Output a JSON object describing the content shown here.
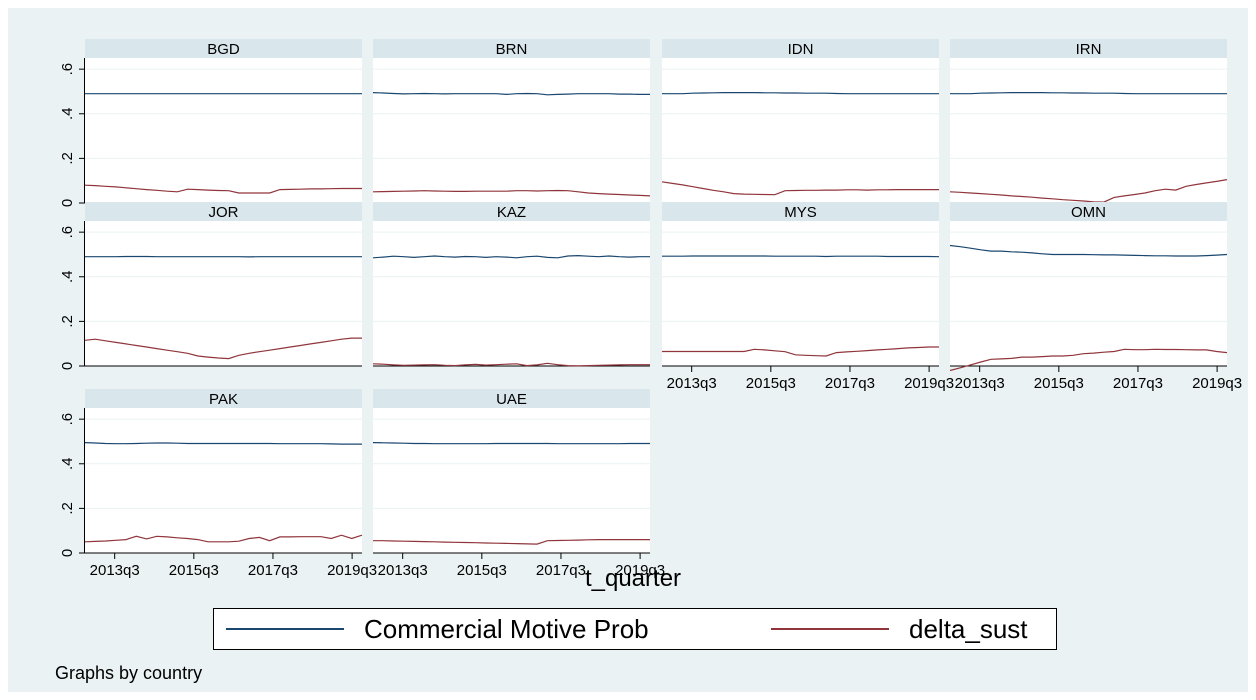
{
  "chart_data": {
    "type": "line",
    "by_note": "Graphs by country",
    "xlabel": "t_quarter",
    "ylim": [
      0,
      0.65
    ],
    "yticks": [
      {
        "value": 0,
        "label": "0"
      },
      {
        "value": 0.2,
        "label": ".2"
      },
      {
        "value": 0.4,
        "label": ".4"
      },
      {
        "value": 0.6,
        "label": ".6"
      }
    ],
    "x_range": [
      2012.75,
      2019.75
    ],
    "xticks": [
      {
        "value": 2013.5,
        "label": "2013q3"
      },
      {
        "value": 2015.5,
        "label": "2015q3"
      },
      {
        "value": 2017.5,
        "label": "2017q3"
      },
      {
        "value": 2019.5,
        "label": "2019q3"
      }
    ],
    "x_start": "2013q1",
    "x_end": "2019q4",
    "legend": {
      "position": "bottom"
    },
    "series_styles": [
      {
        "name": "Commercial Motive Prob",
        "color": "#1a476f"
      },
      {
        "name": "delta_sust",
        "color": "#90353b"
      }
    ],
    "panels": [
      {
        "label": "BGD",
        "commercial": [
          0.49,
          0.49,
          0.49,
          0.49,
          0.49,
          0.49,
          0.49,
          0.49,
          0.49,
          0.49,
          0.49,
          0.49,
          0.49,
          0.49,
          0.49,
          0.49,
          0.49,
          0.49,
          0.49,
          0.49,
          0.49,
          0.49,
          0.49,
          0.49,
          0.49,
          0.49,
          0.49,
          0.49
        ],
        "delta": [
          0.08,
          0.078,
          0.075,
          0.072,
          0.068,
          0.064,
          0.06,
          0.057,
          0.053,
          0.05,
          0.062,
          0.06,
          0.058,
          0.056,
          0.055,
          0.045,
          0.045,
          0.045,
          0.045,
          0.06,
          0.061,
          0.062,
          0.063,
          0.063,
          0.064,
          0.065,
          0.065,
          0.065
        ]
      },
      {
        "label": "BRN",
        "commercial": [
          0.495,
          0.493,
          0.491,
          0.489,
          0.49,
          0.491,
          0.49,
          0.489,
          0.49,
          0.49,
          0.49,
          0.49,
          0.49,
          0.487,
          0.49,
          0.491,
          0.49,
          0.485,
          0.487,
          0.488,
          0.49,
          0.49,
          0.49,
          0.49,
          0.488,
          0.488,
          0.487,
          0.487
        ],
        "delta": [
          0.05,
          0.051,
          0.052,
          0.053,
          0.054,
          0.055,
          0.054,
          0.053,
          0.052,
          0.052,
          0.053,
          0.053,
          0.053,
          0.053,
          0.055,
          0.055,
          0.054,
          0.055,
          0.056,
          0.055,
          0.05,
          0.045,
          0.042,
          0.04,
          0.038,
          0.036,
          0.034,
          0.032
        ]
      },
      {
        "label": "IDN",
        "commercial": [
          0.49,
          0.49,
          0.49,
          0.492,
          0.493,
          0.494,
          0.495,
          0.495,
          0.495,
          0.495,
          0.494,
          0.494,
          0.493,
          0.493,
          0.492,
          0.492,
          0.492,
          0.491,
          0.49,
          0.49,
          0.49,
          0.49,
          0.49,
          0.49,
          0.49,
          0.49,
          0.49,
          0.49
        ],
        "delta": [
          0.095,
          0.088,
          0.081,
          0.073,
          0.065,
          0.057,
          0.05,
          0.042,
          0.04,
          0.039,
          0.038,
          0.037,
          0.055,
          0.056,
          0.057,
          0.057,
          0.058,
          0.058,
          0.059,
          0.059,
          0.058,
          0.059,
          0.059,
          0.06,
          0.06,
          0.06,
          0.06,
          0.06
        ]
      },
      {
        "label": "IRN",
        "commercial": [
          0.49,
          0.49,
          0.49,
          0.492,
          0.493,
          0.494,
          0.495,
          0.495,
          0.495,
          0.495,
          0.494,
          0.494,
          0.493,
          0.493,
          0.492,
          0.492,
          0.492,
          0.491,
          0.49,
          0.49,
          0.49,
          0.49,
          0.49,
          0.49,
          0.49,
          0.49,
          0.49,
          0.49
        ],
        "delta": [
          0.05,
          0.048,
          0.045,
          0.042,
          0.039,
          0.036,
          0.032,
          0.029,
          0.026,
          0.022,
          0.019,
          0.015,
          0.012,
          0.009,
          0.005,
          0.004,
          0.025,
          0.032,
          0.038,
          0.045,
          0.055,
          0.062,
          0.058,
          0.075,
          0.083,
          0.09,
          0.097,
          0.105
        ]
      },
      {
        "label": "JOR",
        "commercial": [
          0.49,
          0.49,
          0.49,
          0.49,
          0.491,
          0.491,
          0.491,
          0.49,
          0.49,
          0.49,
          0.49,
          0.49,
          0.49,
          0.49,
          0.49,
          0.49,
          0.489,
          0.49,
          0.49,
          0.49,
          0.49,
          0.49,
          0.49,
          0.49,
          0.49,
          0.49,
          0.49,
          0.49
        ],
        "delta": [
          0.115,
          0.12,
          0.113,
          0.106,
          0.099,
          0.092,
          0.085,
          0.078,
          0.071,
          0.064,
          0.057,
          0.045,
          0.04,
          0.036,
          0.033,
          0.048,
          0.057,
          0.064,
          0.071,
          0.078,
          0.085,
          0.092,
          0.099,
          0.106,
          0.113,
          0.12,
          0.125,
          0.125
        ]
      },
      {
        "label": "KAZ",
        "commercial": [
          0.485,
          0.488,
          0.492,
          0.49,
          0.487,
          0.49,
          0.493,
          0.49,
          0.488,
          0.491,
          0.49,
          0.487,
          0.49,
          0.488,
          0.485,
          0.49,
          0.492,
          0.487,
          0.485,
          0.493,
          0.495,
          0.492,
          0.49,
          0.493,
          0.49,
          0.488,
          0.49,
          0.49
        ],
        "delta": [
          0.01,
          0.008,
          0.005,
          0.003,
          0.004,
          0.005,
          0.006,
          0.003,
          0.002,
          0.005,
          0.007,
          0.004,
          0.006,
          0.008,
          0.01,
          0.002,
          0.005,
          0.012,
          0.006,
          0.002,
          0.001,
          0.002,
          0.003,
          0.004,
          0.005,
          0.006,
          0.006,
          0.006
        ]
      },
      {
        "label": "MYS",
        "commercial": [
          0.492,
          0.492,
          0.492,
          0.493,
          0.493,
          0.493,
          0.493,
          0.493,
          0.493,
          0.493,
          0.493,
          0.492,
          0.492,
          0.492,
          0.492,
          0.492,
          0.491,
          0.492,
          0.492,
          0.492,
          0.492,
          0.492,
          0.491,
          0.491,
          0.491,
          0.491,
          0.491,
          0.49
        ],
        "delta": [
          0.065,
          0.065,
          0.065,
          0.065,
          0.065,
          0.065,
          0.065,
          0.065,
          0.065,
          0.075,
          0.072,
          0.068,
          0.064,
          0.05,
          0.048,
          0.046,
          0.045,
          0.06,
          0.063,
          0.066,
          0.069,
          0.072,
          0.075,
          0.078,
          0.081,
          0.083,
          0.085,
          0.085
        ]
      },
      {
        "label": "OMN",
        "commercial": [
          0.54,
          0.535,
          0.528,
          0.521,
          0.515,
          0.515,
          0.512,
          0.51,
          0.507,
          0.503,
          0.5,
          0.5,
          0.5,
          0.5,
          0.499,
          0.498,
          0.498,
          0.497,
          0.496,
          0.495,
          0.494,
          0.494,
          0.493,
          0.493,
          0.493,
          0.495,
          0.497,
          0.5
        ],
        "delta": [
          -0.02,
          -0.008,
          0.005,
          0.018,
          0.03,
          0.032,
          0.034,
          0.04,
          0.04,
          0.042,
          0.045,
          0.045,
          0.048,
          0.055,
          0.058,
          0.062,
          0.065,
          0.075,
          0.073,
          0.073,
          0.075,
          0.074,
          0.074,
          0.073,
          0.072,
          0.072,
          0.065,
          0.06
        ]
      },
      {
        "label": "PAK",
        "commercial": [
          0.495,
          0.493,
          0.491,
          0.49,
          0.49,
          0.491,
          0.492,
          0.493,
          0.493,
          0.492,
          0.491,
          0.491,
          0.491,
          0.491,
          0.491,
          0.491,
          0.491,
          0.491,
          0.491,
          0.49,
          0.49,
          0.49,
          0.49,
          0.49,
          0.489,
          0.488,
          0.488,
          0.488
        ],
        "delta": [
          0.05,
          0.052,
          0.054,
          0.057,
          0.06,
          0.075,
          0.063,
          0.075,
          0.072,
          0.068,
          0.065,
          0.06,
          0.05,
          0.05,
          0.05,
          0.053,
          0.065,
          0.07,
          0.055,
          0.072,
          0.072,
          0.073,
          0.073,
          0.073,
          0.065,
          0.08,
          0.065,
          0.08
        ]
      },
      {
        "label": "UAE",
        "commercial": [
          0.495,
          0.494,
          0.493,
          0.492,
          0.491,
          0.491,
          0.49,
          0.49,
          0.49,
          0.49,
          0.49,
          0.49,
          0.491,
          0.491,
          0.491,
          0.491,
          0.491,
          0.491,
          0.49,
          0.49,
          0.49,
          0.49,
          0.49,
          0.49,
          0.49,
          0.491,
          0.491,
          0.491
        ],
        "delta": [
          0.055,
          0.055,
          0.054,
          0.053,
          0.052,
          0.051,
          0.05,
          0.049,
          0.048,
          0.047,
          0.046,
          0.045,
          0.044,
          0.043,
          0.042,
          0.041,
          0.04,
          0.055,
          0.056,
          0.057,
          0.058,
          0.059,
          0.06,
          0.06,
          0.06,
          0.06,
          0.06,
          0.06
        ]
      }
    ]
  }
}
